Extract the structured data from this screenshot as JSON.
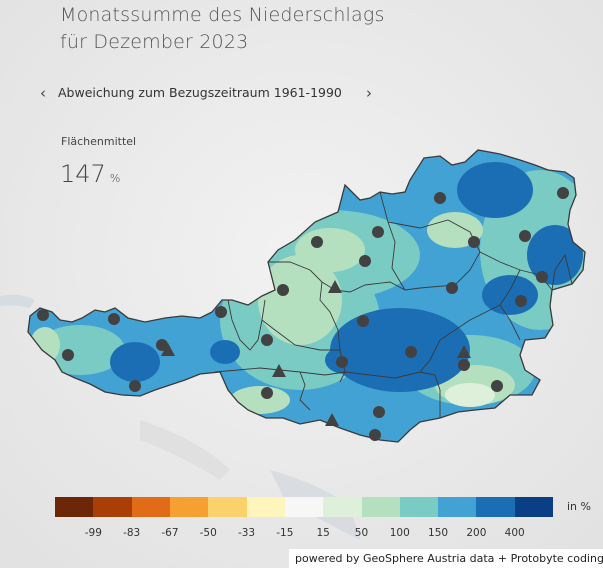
{
  "title": {
    "line1": "Monatssumme des Niederschlags",
    "line2": "für Dezember 2023"
  },
  "nav": {
    "label": "Abweichung zum Bezugszeitraum 1961-1990",
    "prev_icon": "‹",
    "next_icon": "›"
  },
  "stat": {
    "label": "Flächenmittel",
    "value": "147",
    "unit": "%"
  },
  "legend": {
    "unit": "in %",
    "colors": [
      "#6b2708",
      "#a93f06",
      "#e26b17",
      "#f6a031",
      "#fbd16b",
      "#fdf5bc",
      "#f7f7f7",
      "#dff0da",
      "#b5e0c0",
      "#7acbc4",
      "#42a2d3",
      "#1c6eb4",
      "#0b3f85"
    ],
    "ticks": [
      "-99",
      "-83",
      "-67",
      "-50",
      "-33",
      "-15",
      "15",
      "50",
      "100",
      "150",
      "200",
      "400"
    ]
  },
  "map": {
    "colors": {
      "background": "#ececec",
      "outline": "#3a3a3a",
      "marker": "#424242"
    }
  },
  "credit": "powered by GeoSphere Austria data + Protobyte coding"
}
